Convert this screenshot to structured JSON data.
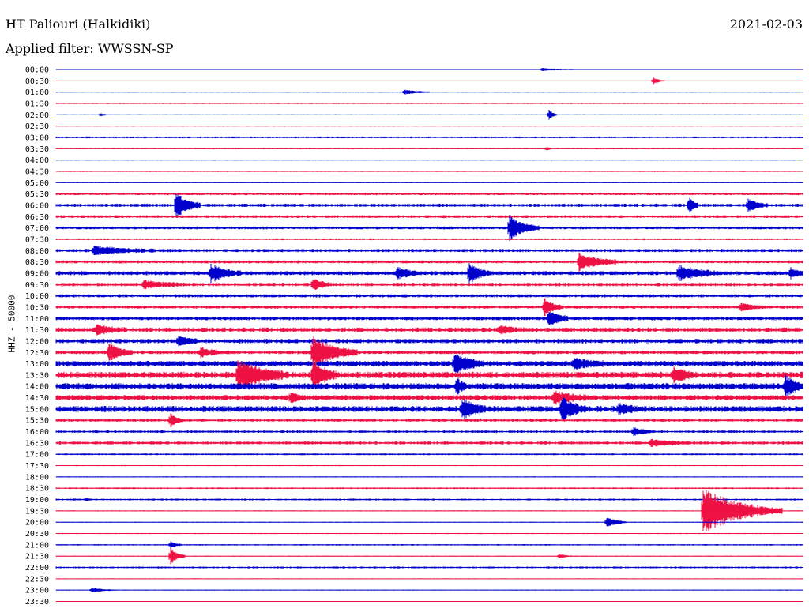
{
  "header": {
    "station": "HT Paliouri (Halkidiki)",
    "date": "2021-02-03",
    "filter": "Applied filter: WWSSN-SP"
  },
  "chart_data": {
    "type": "line",
    "title": "HT Paliouri (Halkidiki)",
    "date": "2021-02-03",
    "filter": "Applied filter: WWSSN-SP",
    "ylabel": "HHZ - 50000",
    "grid": false,
    "colors": [
      "#0000cc",
      "#ee1144"
    ],
    "rows": [
      "00:00",
      "00:30",
      "01:00",
      "01:30",
      "02:00",
      "02:30",
      "03:00",
      "03:30",
      "04:00",
      "04:30",
      "05:00",
      "05:30",
      "06:00",
      "06:30",
      "07:00",
      "07:30",
      "08:00",
      "08:30",
      "09:00",
      "09:30",
      "10:00",
      "10:30",
      "11:00",
      "11:30",
      "12:00",
      "12:30",
      "13:00",
      "13:30",
      "14:00",
      "14:30",
      "15:00",
      "15:30",
      "16:00",
      "16:30",
      "17:00",
      "17:30",
      "18:00",
      "18:30",
      "19:00",
      "19:30",
      "20:00",
      "20:30",
      "21:00",
      "21:30",
      "22:00",
      "22:30",
      "23:00",
      "23:30"
    ],
    "row_minutes": 30,
    "noise_level": [
      0.3,
      0.2,
      0.5,
      0.6,
      0.4,
      0.5,
      0.9,
      0.6,
      0.5,
      0.6,
      0.5,
      1.2,
      1.6,
      1.4,
      1.4,
      0.9,
      1.6,
      1.5,
      2.0,
      1.8,
      1.6,
      1.5,
      1.8,
      2.2,
      2.2,
      1.8,
      2.8,
      3.2,
      3.2,
      2.6,
      3.0,
      1.4,
      1.2,
      1.5,
      0.9,
      0.5,
      0.5,
      0.8,
      0.9,
      0.5,
      0.4,
      0.5,
      0.7,
      0.5,
      0.9,
      0.4,
      0.4,
      0.4
    ],
    "events": [
      {
        "row": 0,
        "minute": 19.5,
        "amplitude": 2,
        "duration": 1.5
      },
      {
        "row": 1,
        "minute": 24.0,
        "amplitude": 5,
        "duration": 0.5
      },
      {
        "row": 2,
        "minute": 14.0,
        "amplitude": 3,
        "duration": 1.0
      },
      {
        "row": 4,
        "minute": 1.8,
        "amplitude": 3,
        "duration": 0.2
      },
      {
        "row": 4,
        "minute": 19.8,
        "amplitude": 8,
        "duration": 0.3
      },
      {
        "row": 7,
        "minute": 19.7,
        "amplitude": 3,
        "duration": 0.2
      },
      {
        "row": 12,
        "minute": 4.8,
        "amplitude": 18,
        "duration": 1.0
      },
      {
        "row": 12,
        "minute": 25.4,
        "amplitude": 12,
        "duration": 0.4
      },
      {
        "row": 12,
        "minute": 27.8,
        "amplitude": 8,
        "duration": 0.8
      },
      {
        "row": 14,
        "minute": 18.2,
        "amplitude": 16,
        "duration": 1.2
      },
      {
        "row": 16,
        "minute": 1.5,
        "amplitude": 5,
        "duration": 2.5
      },
      {
        "row": 17,
        "minute": 21.0,
        "amplitude": 11,
        "duration": 1.6
      },
      {
        "row": 18,
        "minute": 6.2,
        "amplitude": 12,
        "duration": 1.2
      },
      {
        "row": 18,
        "minute": 13.7,
        "amplitude": 8,
        "duration": 0.8
      },
      {
        "row": 18,
        "minute": 16.6,
        "amplitude": 14,
        "duration": 0.8
      },
      {
        "row": 18,
        "minute": 25.0,
        "amplitude": 10,
        "duration": 1.6
      },
      {
        "row": 18,
        "minute": 29.5,
        "amplitude": 6,
        "duration": 0.6
      },
      {
        "row": 19,
        "minute": 3.5,
        "amplitude": 5,
        "duration": 1.5
      },
      {
        "row": 19,
        "minute": 10.3,
        "amplitude": 8,
        "duration": 0.8
      },
      {
        "row": 21,
        "minute": 19.6,
        "amplitude": 12,
        "duration": 0.8
      },
      {
        "row": 21,
        "minute": 27.5,
        "amplitude": 5,
        "duration": 1.0
      },
      {
        "row": 22,
        "minute": 19.8,
        "amplitude": 12,
        "duration": 0.8
      },
      {
        "row": 23,
        "minute": 1.6,
        "amplitude": 6,
        "duration": 1.2
      },
      {
        "row": 23,
        "minute": 17.8,
        "amplitude": 5,
        "duration": 1.0
      },
      {
        "row": 24,
        "minute": 4.9,
        "amplitude": 6,
        "duration": 0.8
      },
      {
        "row": 25,
        "minute": 2.1,
        "amplitude": 12,
        "duration": 1.0
      },
      {
        "row": 25,
        "minute": 5.8,
        "amplitude": 6,
        "duration": 1.0
      },
      {
        "row": 25,
        "minute": 10.3,
        "amplitude": 20,
        "duration": 1.8
      },
      {
        "row": 26,
        "minute": 16.0,
        "amplitude": 12,
        "duration": 1.2
      },
      {
        "row": 26,
        "minute": 20.8,
        "amplitude": 7,
        "duration": 1.2
      },
      {
        "row": 27,
        "minute": 7.3,
        "amplitude": 18,
        "duration": 2.0
      },
      {
        "row": 27,
        "minute": 10.3,
        "amplitude": 18,
        "duration": 1.0
      },
      {
        "row": 27,
        "minute": 24.8,
        "amplitude": 10,
        "duration": 1.0
      },
      {
        "row": 28,
        "minute": 16.1,
        "amplitude": 10,
        "duration": 0.4
      },
      {
        "row": 28,
        "minute": 29.3,
        "amplitude": 12,
        "duration": 0.8
      },
      {
        "row": 29,
        "minute": 9.4,
        "amplitude": 6,
        "duration": 0.6
      },
      {
        "row": 29,
        "minute": 20.0,
        "amplitude": 7,
        "duration": 1.5
      },
      {
        "row": 30,
        "minute": 16.3,
        "amplitude": 12,
        "duration": 1.0
      },
      {
        "row": 30,
        "minute": 20.3,
        "amplitude": 16,
        "duration": 1.0
      },
      {
        "row": 30,
        "minute": 22.6,
        "amplitude": 5,
        "duration": 1.0
      },
      {
        "row": 31,
        "minute": 4.6,
        "amplitude": 10,
        "duration": 0.5
      },
      {
        "row": 32,
        "minute": 23.2,
        "amplitude": 6,
        "duration": 0.8
      },
      {
        "row": 33,
        "minute": 23.9,
        "amplitude": 5,
        "duration": 1.5
      },
      {
        "row": 38,
        "minute": 1.2,
        "amplitude": 2,
        "duration": 0.2
      },
      {
        "row": 39,
        "minute": 26.0,
        "amplitude": 30,
        "duration": 3.2
      },
      {
        "row": 40,
        "minute": 22.1,
        "amplitude": 8,
        "duration": 0.8
      },
      {
        "row": 42,
        "minute": 4.6,
        "amplitude": 4,
        "duration": 0.5
      },
      {
        "row": 43,
        "minute": 4.6,
        "amplitude": 11,
        "duration": 0.6
      },
      {
        "row": 43,
        "minute": 20.2,
        "amplitude": 3,
        "duration": 0.5
      },
      {
        "row": 46,
        "minute": 1.4,
        "amplitude": 3,
        "duration": 1.0
      }
    ]
  }
}
